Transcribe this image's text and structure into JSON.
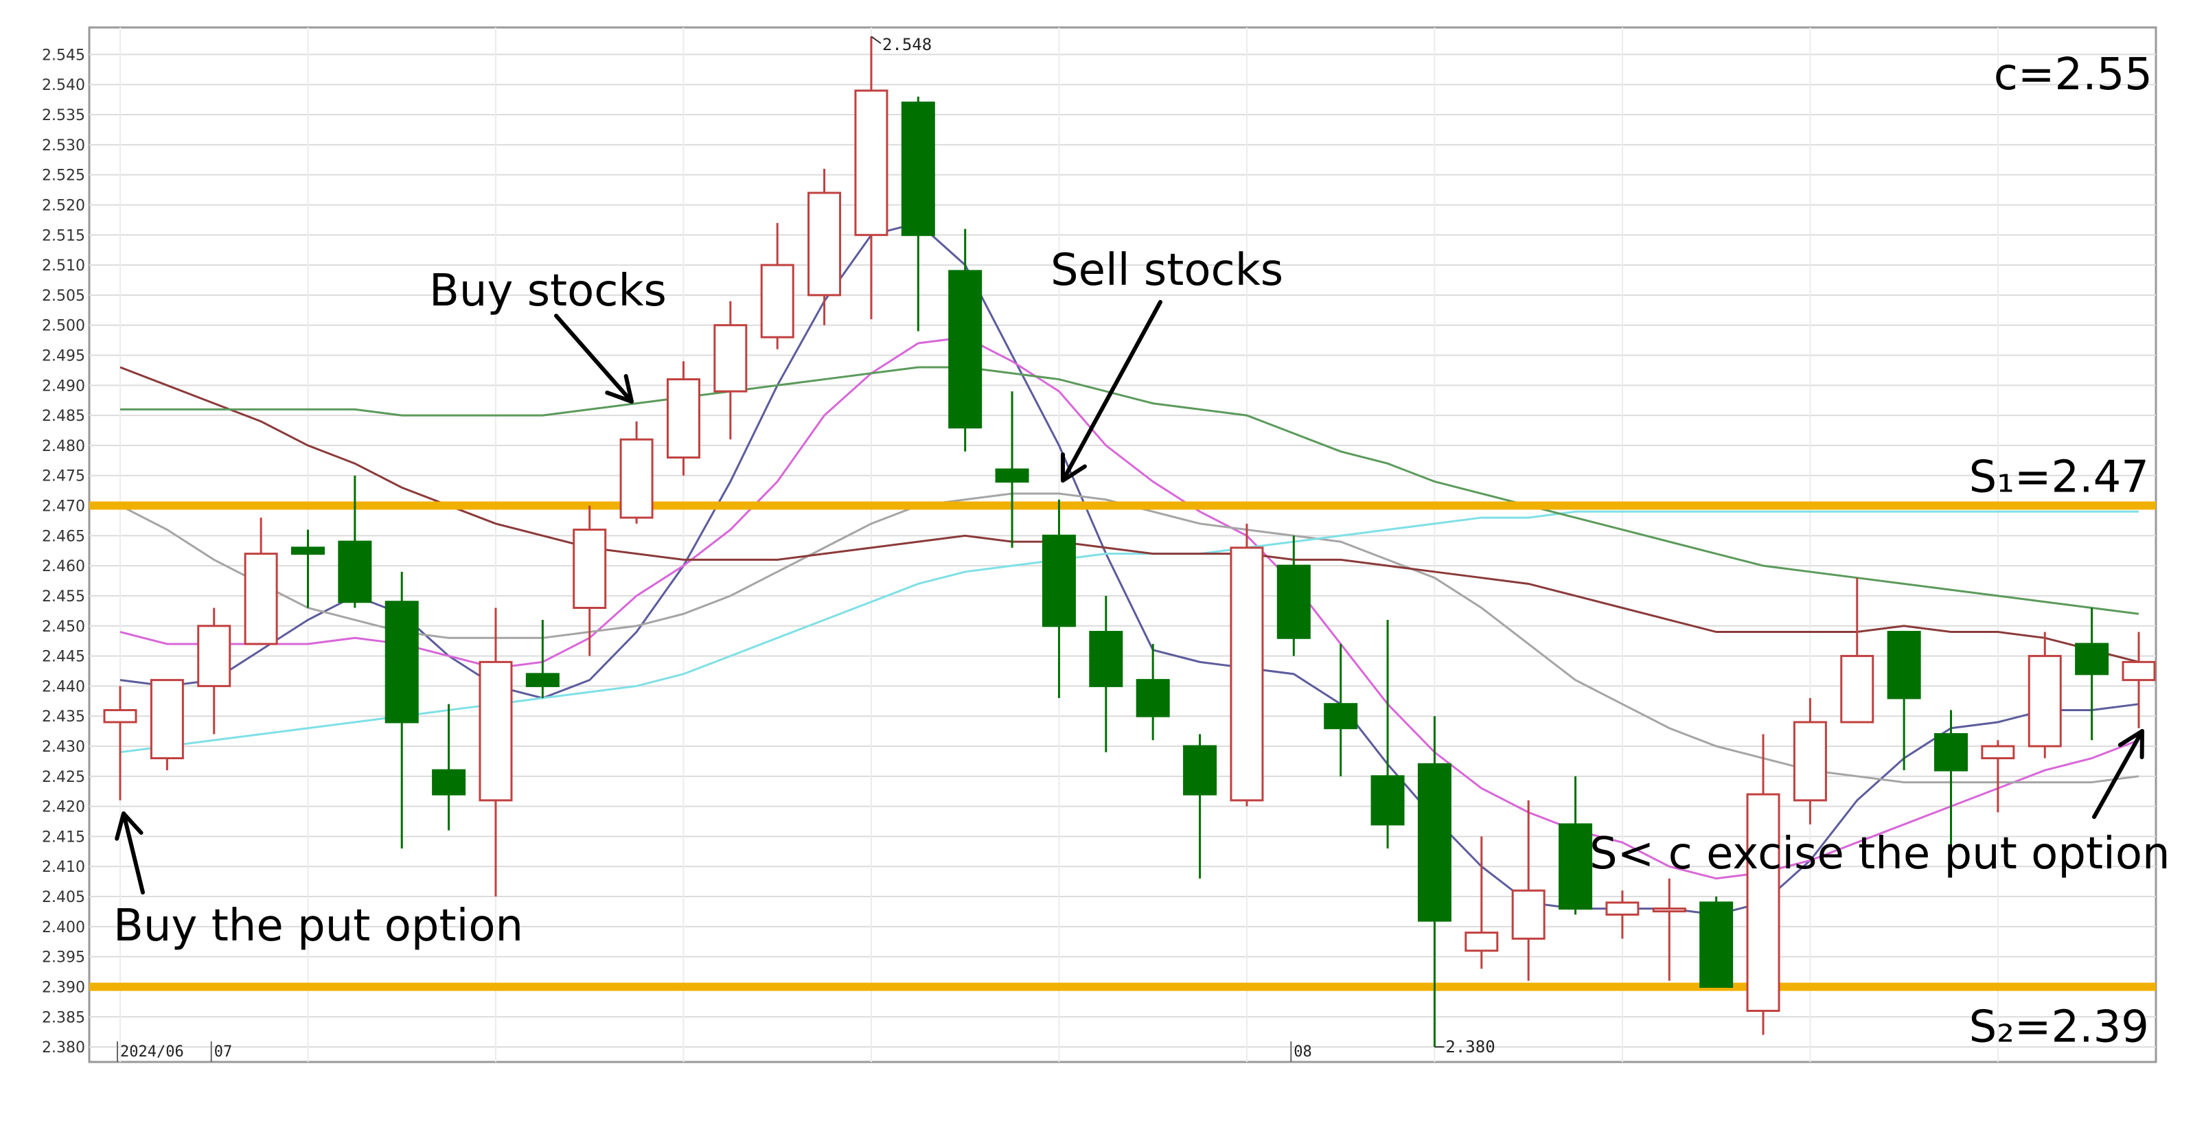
{
  "chart_data": {
    "type": "candlestick",
    "y_range": [
      2.38,
      2.55
    ],
    "y_ticks": [
      "2.545",
      "2.540",
      "2.535",
      "2.530",
      "2.525",
      "2.520",
      "2.515",
      "2.510",
      "2.505",
      "2.500",
      "2.495",
      "2.490",
      "2.485",
      "2.480",
      "2.475",
      "2.470",
      "2.465",
      "2.460",
      "2.455",
      "2.450",
      "2.445",
      "2.440",
      "2.435",
      "2.430",
      "2.425",
      "2.420",
      "2.415",
      "2.410",
      "2.405",
      "2.400",
      "2.395",
      "2.390",
      "2.385",
      "2.380"
    ],
    "x_labels": [
      {
        "text": "2024/06",
        "index": 0
      },
      {
        "text": "07",
        "index": 2
      },
      {
        "text": "08",
        "index": 25
      }
    ],
    "candles": [
      {
        "o": 2.434,
        "h": 2.44,
        "l": 2.421,
        "c": 2.436
      },
      {
        "o": 2.428,
        "h": 2.441,
        "l": 2.426,
        "c": 2.441
      },
      {
        "o": 2.44,
        "h": 2.453,
        "l": 2.432,
        "c": 2.45
      },
      {
        "o": 2.447,
        "h": 2.468,
        "l": 2.447,
        "c": 2.462
      },
      {
        "o": 2.463,
        "h": 2.466,
        "l": 2.453,
        "c": 2.462
      },
      {
        "o": 2.464,
        "h": 2.475,
        "l": 2.453,
        "c": 2.454
      },
      {
        "o": 2.454,
        "h": 2.459,
        "l": 2.413,
        "c": 2.434
      },
      {
        "o": 2.426,
        "h": 2.437,
        "l": 2.416,
        "c": 2.422
      },
      {
        "o": 2.421,
        "h": 2.453,
        "l": 2.405,
        "c": 2.444
      },
      {
        "o": 2.442,
        "h": 2.451,
        "l": 2.438,
        "c": 2.44
      },
      {
        "o": 2.453,
        "h": 2.47,
        "l": 2.445,
        "c": 2.466
      },
      {
        "o": 2.468,
        "h": 2.484,
        "l": 2.467,
        "c": 2.481
      },
      {
        "o": 2.478,
        "h": 2.494,
        "l": 2.475,
        "c": 2.491
      },
      {
        "o": 2.489,
        "h": 2.504,
        "l": 2.481,
        "c": 2.5
      },
      {
        "o": 2.498,
        "h": 2.517,
        "l": 2.496,
        "c": 2.51
      },
      {
        "o": 2.505,
        "h": 2.526,
        "l": 2.5,
        "c": 2.522
      },
      {
        "o": 2.515,
        "h": 2.548,
        "l": 2.501,
        "c": 2.539
      },
      {
        "o": 2.537,
        "h": 2.538,
        "l": 2.499,
        "c": 2.515
      },
      {
        "o": 2.509,
        "h": 2.516,
        "l": 2.479,
        "c": 2.483
      },
      {
        "o": 2.476,
        "h": 2.489,
        "l": 2.463,
        "c": 2.474
      },
      {
        "o": 2.465,
        "h": 2.471,
        "l": 2.438,
        "c": 2.45
      },
      {
        "o": 2.449,
        "h": 2.455,
        "l": 2.429,
        "c": 2.44
      },
      {
        "o": 2.441,
        "h": 2.447,
        "l": 2.431,
        "c": 2.435
      },
      {
        "o": 2.43,
        "h": 2.432,
        "l": 2.408,
        "c": 2.422
      },
      {
        "o": 2.421,
        "h": 2.467,
        "l": 2.42,
        "c": 2.463
      },
      {
        "o": 2.46,
        "h": 2.465,
        "l": 2.445,
        "c": 2.448
      },
      {
        "o": 2.437,
        "h": 2.447,
        "l": 2.425,
        "c": 2.433
      },
      {
        "o": 2.425,
        "h": 2.451,
        "l": 2.413,
        "c": 2.417
      },
      {
        "o": 2.427,
        "h": 2.435,
        "l": 2.38,
        "c": 2.401
      },
      {
        "o": 2.396,
        "h": 2.415,
        "l": 2.393,
        "c": 2.399
      },
      {
        "o": 2.398,
        "h": 2.421,
        "l": 2.391,
        "c": 2.406
      },
      {
        "o": 2.417,
        "h": 2.425,
        "l": 2.402,
        "c": 2.403
      },
      {
        "o": 2.402,
        "h": 2.406,
        "l": 2.398,
        "c": 2.404
      },
      {
        "o": 2.403,
        "h": 2.408,
        "l": 2.391,
        "c": 2.403
      },
      {
        "o": 2.404,
        "h": 2.405,
        "l": 2.39,
        "c": 2.39
      },
      {
        "o": 2.386,
        "h": 2.432,
        "l": 2.382,
        "c": 2.422
      },
      {
        "o": 2.421,
        "h": 2.438,
        "l": 2.417,
        "c": 2.434
      },
      {
        "o": 2.434,
        "h": 2.458,
        "l": 2.434,
        "c": 2.445
      },
      {
        "o": 2.449,
        "h": 2.449,
        "l": 2.426,
        "c": 2.438
      },
      {
        "o": 2.432,
        "h": 2.436,
        "l": 2.411,
        "c": 2.426
      },
      {
        "o": 2.428,
        "h": 2.431,
        "l": 2.419,
        "c": 2.43
      },
      {
        "o": 2.43,
        "h": 2.449,
        "l": 2.428,
        "c": 2.445
      },
      {
        "o": 2.447,
        "h": 2.453,
        "l": 2.431,
        "c": 2.442
      },
      {
        "o": 2.441,
        "h": 2.449,
        "l": 2.433,
        "c": 2.444
      }
    ],
    "moving_averages": [
      {
        "color": "#5c5c9c",
        "values": [
          2.441,
          2.44,
          2.441,
          2.446,
          2.451,
          2.455,
          2.452,
          2.445,
          2.44,
          2.438,
          2.441,
          2.449,
          2.46,
          2.474,
          2.49,
          2.504,
          2.515,
          2.517,
          2.51,
          2.495,
          2.48,
          2.462,
          2.446,
          2.444,
          2.443,
          2.442,
          2.437,
          2.427,
          2.418,
          2.41,
          2.404,
          2.403,
          2.403,
          2.403,
          2.402,
          2.404,
          2.411,
          2.421,
          2.428,
          2.433,
          2.434,
          2.436,
          2.436,
          2.437
        ]
      },
      {
        "color": "#d867d8",
        "values": [
          2.449,
          2.447,
          2.447,
          2.447,
          2.447,
          2.448,
          2.447,
          2.445,
          2.443,
          2.444,
          2.448,
          2.455,
          2.46,
          2.466,
          2.474,
          2.485,
          2.492,
          2.497,
          2.498,
          2.494,
          2.489,
          2.48,
          2.474,
          2.469,
          2.465,
          2.457,
          2.447,
          2.437,
          2.429,
          2.423,
          2.419,
          2.416,
          2.414,
          2.41,
          2.408,
          2.409,
          2.411,
          2.414,
          2.417,
          2.42,
          2.423,
          2.426,
          2.428,
          2.431
        ]
      },
      {
        "color": "#a5a5a5",
        "values": [
          2.47,
          2.466,
          2.461,
          2.457,
          2.453,
          2.451,
          2.449,
          2.448,
          2.448,
          2.448,
          2.449,
          2.45,
          2.452,
          2.455,
          2.459,
          2.463,
          2.467,
          2.47,
          2.471,
          2.472,
          2.472,
          2.471,
          2.469,
          2.467,
          2.466,
          2.465,
          2.464,
          2.461,
          2.458,
          2.453,
          2.447,
          2.441,
          2.437,
          2.433,
          2.43,
          2.428,
          2.426,
          2.425,
          2.424,
          2.424,
          2.424,
          2.424,
          2.424,
          2.425
        ]
      },
      {
        "color": "#7fe0e6",
        "values": [
          2.429,
          2.43,
          2.431,
          2.432,
          2.433,
          2.434,
          2.435,
          2.436,
          2.437,
          2.438,
          2.439,
          2.44,
          2.442,
          2.445,
          2.448,
          2.451,
          2.454,
          2.457,
          2.459,
          2.46,
          2.461,
          2.462,
          2.462,
          2.462,
          2.463,
          2.464,
          2.465,
          2.466,
          2.467,
          2.468,
          2.468,
          2.469,
          2.469,
          2.469,
          2.469,
          2.469,
          2.469,
          2.469,
          2.469,
          2.469,
          2.469,
          2.469,
          2.469,
          2.469
        ]
      },
      {
        "color": "#8b3a3a",
        "values": [
          2.493,
          2.49,
          2.487,
          2.484,
          2.48,
          2.477,
          2.473,
          2.47,
          2.467,
          2.465,
          2.463,
          2.462,
          2.461,
          2.461,
          2.461,
          2.462,
          2.463,
          2.464,
          2.465,
          2.464,
          2.464,
          2.463,
          2.462,
          2.462,
          2.462,
          2.461,
          2.461,
          2.46,
          2.459,
          2.458,
          2.457,
          2.455,
          2.453,
          2.451,
          2.449,
          2.449,
          2.449,
          2.449,
          2.45,
          2.449,
          2.449,
          2.448,
          2.446,
          2.444
        ]
      },
      {
        "color": "#5b9a5b",
        "values": [
          2.486,
          2.486,
          2.486,
          2.486,
          2.486,
          2.486,
          2.485,
          2.485,
          2.485,
          2.485,
          2.486,
          2.487,
          2.488,
          2.489,
          2.49,
          2.491,
          2.492,
          2.493,
          2.493,
          2.492,
          2.491,
          2.489,
          2.487,
          2.486,
          2.485,
          2.482,
          2.479,
          2.477,
          2.474,
          2.472,
          2.47,
          2.468,
          2.466,
          2.464,
          2.462,
          2.46,
          2.459,
          2.458,
          2.457,
          2.456,
          2.455,
          2.454,
          2.453,
          2.452
        ]
      }
    ],
    "levels": [
      {
        "label": "S₁=2.47",
        "value": 2.47,
        "color": "#f0b000"
      },
      {
        "label": "S₂=2.39",
        "value": 2.39,
        "color": "#f0b000"
      }
    ],
    "strike_label": "c=2.55",
    "annotations": [
      {
        "text": "Buy the put option",
        "candle": 0
      },
      {
        "text": "Buy stocks",
        "candle": 11
      },
      {
        "text": "Sell stocks",
        "candle": 20
      },
      {
        "text": "S< c  excise the put option",
        "candle": 43
      }
    ],
    "high_marker": {
      "text": "2.548",
      "candle": 16
    },
    "low_marker": {
      "text": "2.380",
      "candle": 28
    },
    "up_color": "#c04040",
    "down_color": "#007000"
  }
}
